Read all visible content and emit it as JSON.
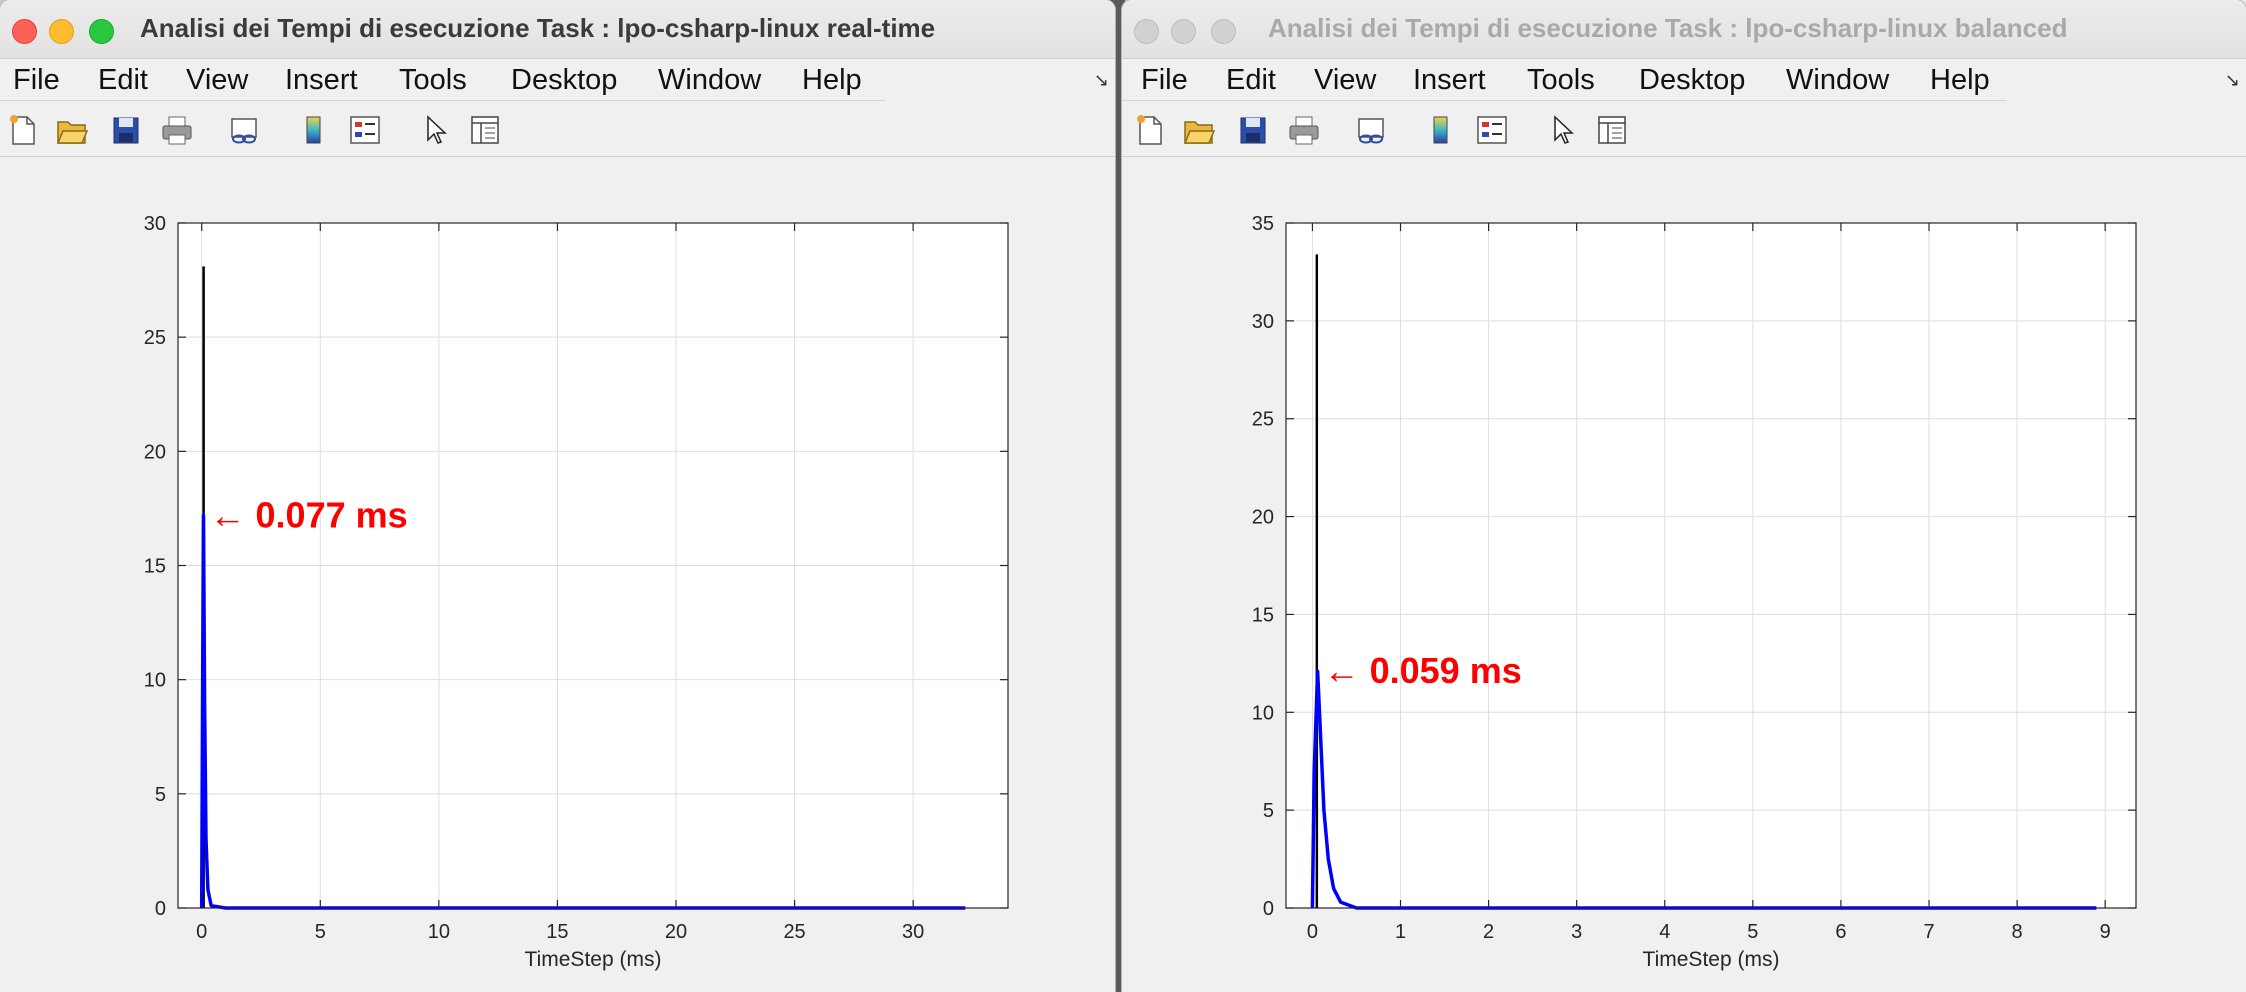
{
  "windows": [
    {
      "title": "Analisi dei Tempi di esecuzione Task : lpo-csharp-linux real-time",
      "active": true,
      "menu": [
        "File",
        "Edit",
        "View",
        "Insert",
        "Tools",
        "Desktop",
        "Window",
        "Help"
      ],
      "toolbar": [
        "new-figure-icon",
        "open-folder-icon",
        "save-icon",
        "print-icon",
        "link-plot-icon",
        "colorbar-icon",
        "legend-icon",
        "pointer-icon",
        "property-inspector-icon"
      ],
      "chart_data": {
        "type": "line",
        "xlabel": "TimeStep (ms)",
        "ylabel": "",
        "title": "",
        "xlim": [
          -1,
          34
        ],
        "ylim": [
          0,
          30
        ],
        "xticks": [
          0,
          5,
          10,
          15,
          20,
          25,
          30
        ],
        "yticks": [
          0,
          5,
          10,
          15,
          20,
          25,
          30
        ],
        "grid": true,
        "stem_x": 0.08,
        "stem_top": 28.1,
        "series": [
          {
            "color": "#0000ff",
            "x": [
              0,
              0.04,
              0.077,
              0.12,
              0.18,
              0.26,
              0.4,
              1,
              5,
              10,
              20,
              30,
              32.2
            ],
            "y": [
              0,
              10.5,
              17.2,
              9,
              3,
              0.8,
              0.1,
              0,
              0,
              0,
              0,
              0,
              0
            ]
          }
        ],
        "annotation": {
          "text": "← 0.077 ms",
          "x": 0.077,
          "y": 17.2,
          "color": "#ff0000"
        }
      }
    },
    {
      "title": "Analisi dei Tempi di esecuzione Task : lpo-csharp-linux balanced",
      "active": false,
      "menu": [
        "File",
        "Edit",
        "View",
        "Insert",
        "Tools",
        "Desktop",
        "Window",
        "Help"
      ],
      "toolbar": [
        "new-figure-icon",
        "open-folder-icon",
        "save-icon",
        "print-icon",
        "link-plot-icon",
        "colorbar-icon",
        "legend-icon",
        "pointer-icon",
        "property-inspector-icon"
      ],
      "chart_data": {
        "type": "line",
        "xlabel": "TimeStep (ms)",
        "ylabel": "",
        "title": "",
        "xlim": [
          -0.3,
          9.35
        ],
        "ylim": [
          0,
          35
        ],
        "xticks": [
          0,
          1,
          2,
          3,
          4,
          5,
          6,
          7,
          8,
          9
        ],
        "yticks": [
          0,
          5,
          10,
          15,
          20,
          25,
          30,
          35
        ],
        "grid": true,
        "stem_x": 0.05,
        "stem_top": 33.4,
        "series": [
          {
            "color": "#0000ff",
            "x": [
              0,
              0.02,
              0.059,
              0.09,
              0.13,
              0.18,
              0.24,
              0.32,
              0.5,
              1,
              3,
              6,
              8.9
            ],
            "y": [
              0,
              7,
              12.1,
              9,
              5,
              2.5,
              1,
              0.3,
              0,
              0,
              0,
              0,
              0
            ]
          }
        ],
        "annotation": {
          "text": "← 0.059 ms",
          "x": 0.059,
          "y": 12.1,
          "color": "#ff0000"
        }
      }
    }
  ]
}
